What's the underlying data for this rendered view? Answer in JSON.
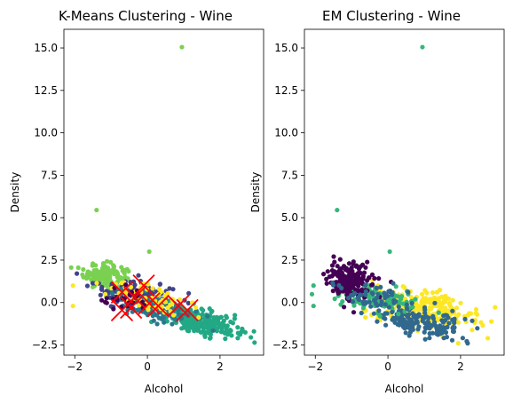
{
  "chart_data": [
    {
      "type": "scatter",
      "title": "K-Means Clustering - Wine",
      "xlabel": "Alcohol",
      "ylabel": "Density",
      "xlim": [
        -2.3,
        3.2
      ],
      "ylim": [
        -3.1,
        16.1
      ],
      "xticks": [
        -2,
        0,
        2
      ],
      "yticks": [
        -2.5,
        0.0,
        2.5,
        5.0,
        7.5,
        10.0,
        12.5,
        15.0
      ],
      "xtick_labels": [
        "−2",
        "0",
        "2"
      ],
      "ytick_labels": [
        "−2.5",
        "0.0",
        "2.5",
        "5.0",
        "7.5",
        "10.0",
        "12.5",
        "15.0"
      ],
      "grid": false,
      "legend": null,
      "clusters": [
        {
          "color": "#7ad151",
          "center": [
            -1.15,
            1.55
          ],
          "spread": [
            0.3,
            0.4
          ],
          "count": 170
        },
        {
          "color": "#22a884",
          "center": [
            1.55,
            -1.2
          ],
          "spread": [
            0.5,
            0.35
          ],
          "count": 230
        },
        {
          "color": "#414487",
          "center": [
            -0.35,
            0.55
          ],
          "spread": [
            0.55,
            0.45
          ],
          "count": 140
        },
        {
          "color": "#2a788e",
          "center": [
            0.2,
            -0.25
          ],
          "spread": [
            0.55,
            0.4
          ],
          "count": 120
        },
        {
          "color": "#fde725",
          "center": [
            0.1,
            0.25
          ],
          "spread": [
            0.7,
            0.5
          ],
          "count": 60
        },
        {
          "color": "#440154",
          "center": [
            -0.6,
            0.1
          ],
          "spread": [
            0.35,
            0.3
          ],
          "count": 25
        }
      ],
      "outliers": [
        {
          "x": 0.95,
          "y": 15.05,
          "color": "#7ad151"
        },
        {
          "x": -1.4,
          "y": 5.45,
          "color": "#7ad151"
        },
        {
          "x": 0.05,
          "y": 3.0,
          "color": "#7ad151"
        },
        {
          "x": -2.05,
          "y": 1.0,
          "color": "#fde725"
        },
        {
          "x": -2.05,
          "y": -0.2,
          "color": "#fde725"
        },
        {
          "x": 2.85,
          "y": -2.05,
          "color": "#22a884"
        }
      ],
      "centroids": [
        {
          "x": -0.7,
          "y": 0.6
        },
        {
          "x": -0.35,
          "y": 0.3
        },
        {
          "x": -0.1,
          "y": 1.0
        },
        {
          "x": -0.45,
          "y": -0.3
        },
        {
          "x": 0.05,
          "y": -0.05
        },
        {
          "x": 0.3,
          "y": -0.2
        },
        {
          "x": -0.7,
          "y": -0.45
        },
        {
          "x": 1.1,
          "y": -0.45
        },
        {
          "x": 0.85,
          "y": -0.2
        }
      ],
      "centroid_color": "#ff0000"
    },
    {
      "type": "scatter",
      "title": "EM Clustering - Wine",
      "xlabel": "Alcohol",
      "ylabel": "Density",
      "xlim": [
        -2.3,
        3.2
      ],
      "ylim": [
        -3.1,
        16.1
      ],
      "xticks": [
        -2,
        0,
        2
      ],
      "yticks": [
        -2.5,
        0.0,
        2.5,
        5.0,
        7.5,
        10.0,
        12.5,
        15.0
      ],
      "xtick_labels": [
        "−2",
        "0",
        "2"
      ],
      "ytick_labels": [
        "−2.5",
        "0.0",
        "2.5",
        "5.0",
        "7.5",
        "10.0",
        "12.5",
        "15.0"
      ],
      "grid": false,
      "legend": null,
      "clusters": [
        {
          "color": "#fde725",
          "center": [
            1.0,
            -0.4
          ],
          "spread": [
            0.75,
            0.55
          ],
          "count": 260
        },
        {
          "color": "#31688e",
          "center": [
            0.9,
            -1.2
          ],
          "spread": [
            0.65,
            0.4
          ],
          "count": 160
        },
        {
          "color": "#35b779",
          "center": [
            -0.4,
            0.2
          ],
          "spread": [
            0.6,
            0.45
          ],
          "count": 110
        },
        {
          "color": "#440154",
          "center": [
            -1.05,
            1.3
          ],
          "spread": [
            0.3,
            0.5
          ],
          "count": 190
        },
        {
          "color": "#31688e",
          "center": [
            -0.3,
            0.2
          ],
          "spread": [
            0.5,
            0.4
          ],
          "count": 60
        }
      ],
      "outliers": [
        {
          "x": 0.95,
          "y": 15.05,
          "color": "#35b779"
        },
        {
          "x": -1.4,
          "y": 5.45,
          "color": "#35b779"
        },
        {
          "x": 0.05,
          "y": 3.0,
          "color": "#35b779"
        },
        {
          "x": -2.05,
          "y": 1.0,
          "color": "#35b779"
        },
        {
          "x": -2.05,
          "y": -0.2,
          "color": "#35b779"
        },
        {
          "x": 2.75,
          "y": -2.1,
          "color": "#fde725"
        }
      ],
      "centroids": [],
      "centroid_color": "#ff0000"
    }
  ]
}
